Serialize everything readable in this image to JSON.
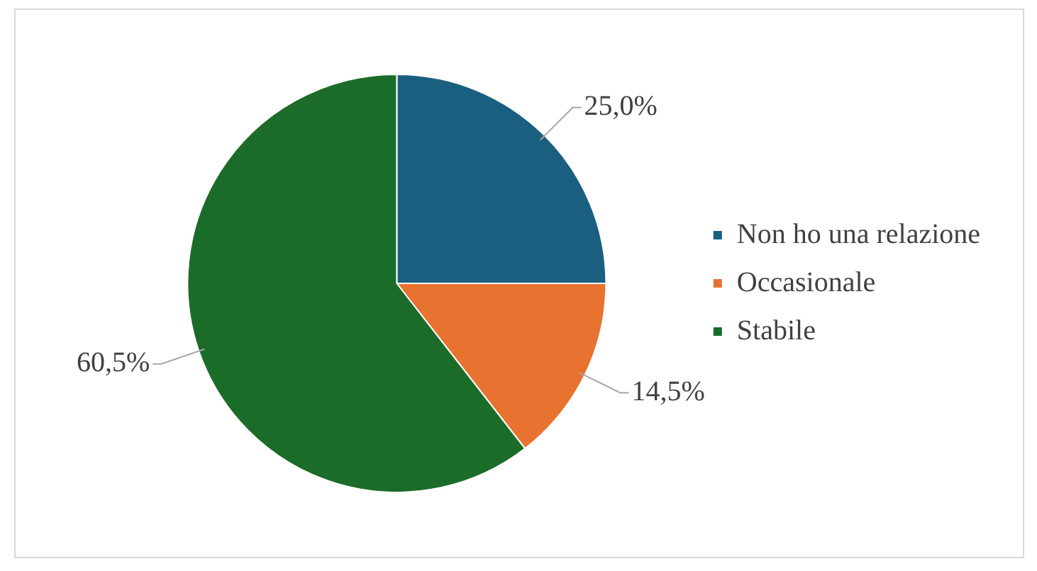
{
  "chart_data": {
    "type": "pie",
    "categories": [
      "Non ho una relazione",
      "Occasionale",
      "Stabile"
    ],
    "values": [
      25,
      14.5,
      60.5
    ],
    "colors": [
      "#1a5e80",
      "#e8722f",
      "#1b6b29"
    ],
    "value_labels": [
      "25,0%",
      "14,5%",
      "60,5%"
    ],
    "legend": "right"
  }
}
